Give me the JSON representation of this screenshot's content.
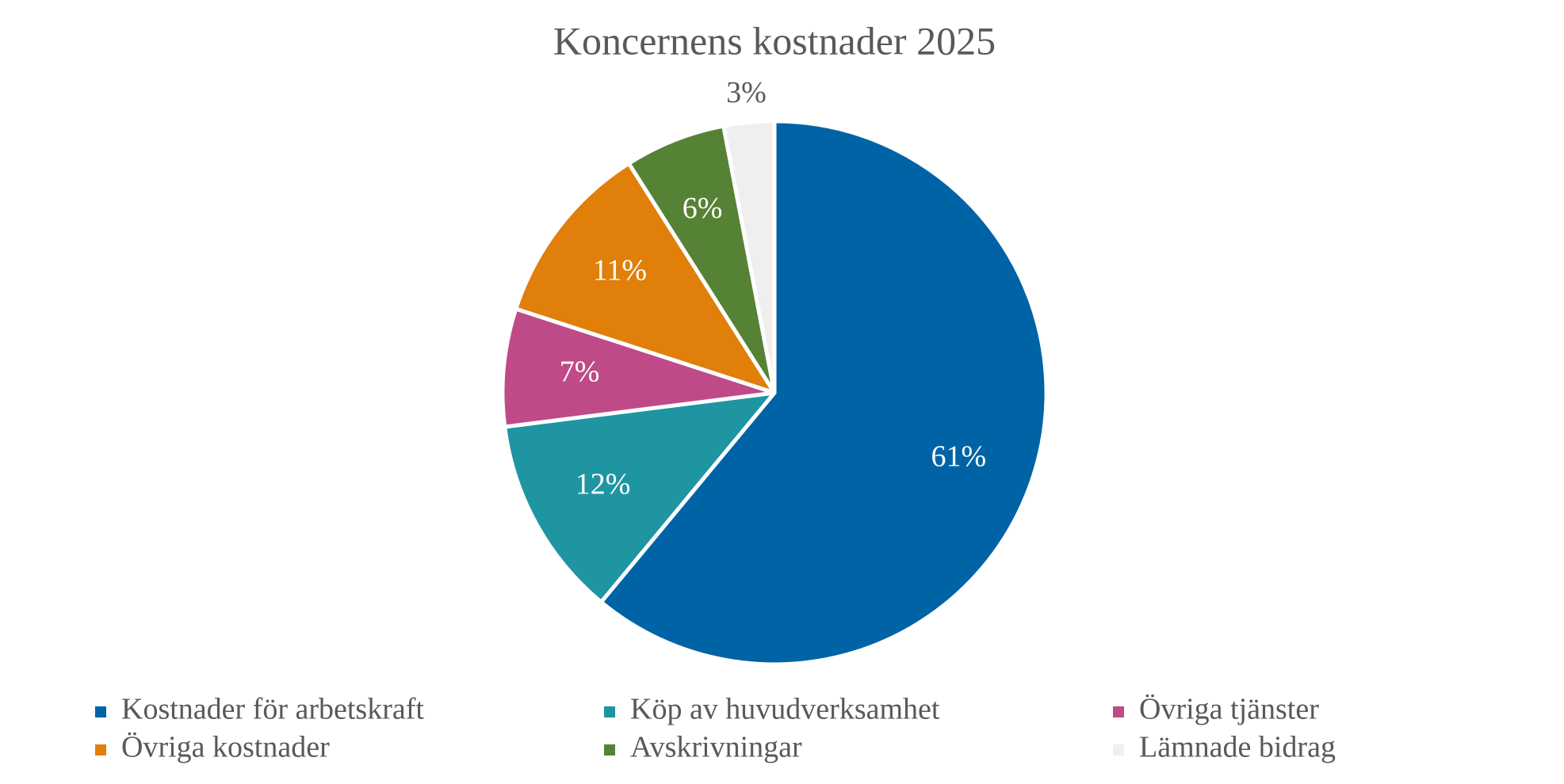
{
  "chart_data": {
    "type": "pie",
    "title": "Koncernens kostnader 2025",
    "categories": [
      "Kostnader för arbetskraft",
      "Köp av huvudverksamhet",
      "Övriga tjänster",
      "Övriga kostnader",
      "Avskrivningar",
      "Lämnade bidrag"
    ],
    "values": [
      61,
      12,
      7,
      11,
      6,
      3
    ],
    "value_labels": [
      "61%",
      "12%",
      "7%",
      "11%",
      "6%",
      "3%"
    ],
    "colors": [
      "#0063a6",
      "#1f95a2",
      "#be4b87",
      "#e07f0a",
      "#568235",
      "#efefef"
    ],
    "legend": "bottom"
  }
}
